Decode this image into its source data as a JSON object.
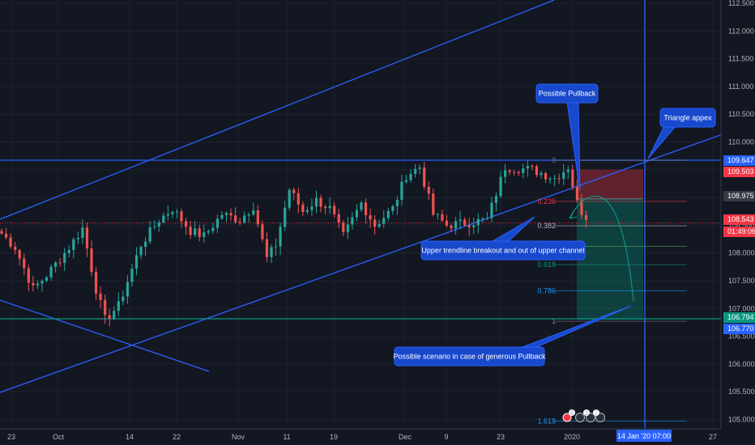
{
  "chart_data": {
    "type": "candlestick",
    "price_axis": {
      "range": [
        104.9,
        112.6
      ],
      "ticks": [
        "112.500",
        "112.000",
        "111.500",
        "111.000",
        "110.500",
        "110.000",
        "109.500",
        "109.000",
        "108.500",
        "108.000",
        "107.500",
        "107.000",
        "106.500",
        "106.000",
        "105.500",
        "105.000"
      ]
    },
    "time_axis": {
      "labels": [
        "23",
        "Oct",
        "14",
        "22",
        "Nov",
        "11",
        "19",
        "Dec",
        "9",
        "23",
        "2020",
        "27"
      ],
      "crosshair_label": "14 Jan '20   07:00"
    },
    "price_tags": [
      {
        "value": "109.647",
        "color": "#2962ff"
      },
      {
        "value": "109.503",
        "color": "#f23645"
      },
      {
        "value": "108.975",
        "color": "#363a45"
      },
      {
        "value": "108.543",
        "color": "#f23645"
      },
      {
        "value": "01:49:06",
        "color": "#f23645"
      },
      {
        "value": "106.794",
        "color": "#089981"
      },
      {
        "value": "106.770",
        "color": "#2962ff"
      }
    ],
    "fib_levels": [
      {
        "label": "0",
        "price": 109.67,
        "color": "#787b86"
      },
      {
        "label": "0.236",
        "price": 108.93,
        "color": "#f23645"
      },
      {
        "label": "0.382",
        "price": 108.49,
        "color": "#b2b5be"
      },
      {
        "label": "0.5",
        "price": 108.12,
        "color": "#4caf50"
      },
      {
        "label": "0.618",
        "price": 107.79,
        "color": "#089981"
      },
      {
        "label": "0.786",
        "price": 107.32,
        "color": "#2196f3"
      },
      {
        "label": "1",
        "price": 106.77,
        "color": "#787b86"
      },
      {
        "label": "1.618",
        "price": 104.97,
        "color": "#2196f3"
      }
    ],
    "annotations": [
      {
        "id": "pullback",
        "text": "Possible Pullback"
      },
      {
        "id": "triangle",
        "text": "Triangle appex"
      },
      {
        "id": "breakout",
        "text": "Upper trendline breakout and out of upper channel"
      },
      {
        "id": "scenario",
        "text": "Possible scenario in case of generous Pullback"
      }
    ],
    "events": [
      "4",
      "3",
      "7"
    ],
    "position": {
      "entry": 108.975,
      "stop": 109.503,
      "target": 106.794
    },
    "anchors": [
      {
        "day": 0,
        "price": 108.35
      },
      {
        "day": 3,
        "price": 108.1
      },
      {
        "day": 7,
        "price": 107.35
      },
      {
        "day": 10,
        "price": 107.6
      },
      {
        "day": 15,
        "price": 108.1
      },
      {
        "day": 18,
        "price": 108.45
      },
      {
        "day": 21,
        "price": 107.35
      },
      {
        "day": 23,
        "price": 106.8
      },
      {
        "day": 26,
        "price": 107.05
      },
      {
        "day": 31,
        "price": 108.15
      },
      {
        "day": 35,
        "price": 108.6
      },
      {
        "day": 38,
        "price": 108.8
      },
      {
        "day": 42,
        "price": 108.4
      },
      {
        "day": 45,
        "price": 108.3
      },
      {
        "day": 49,
        "price": 108.7
      },
      {
        "day": 53,
        "price": 108.6
      },
      {
        "day": 56,
        "price": 108.85
      },
      {
        "day": 59,
        "price": 107.9
      },
      {
        "day": 61,
        "price": 108.15
      },
      {
        "day": 64,
        "price": 109.15
      },
      {
        "day": 67,
        "price": 108.75
      },
      {
        "day": 70,
        "price": 108.95
      },
      {
        "day": 73,
        "price": 108.8
      },
      {
        "day": 76,
        "price": 108.3
      },
      {
        "day": 80,
        "price": 108.9
      },
      {
        "day": 83,
        "price": 108.5
      },
      {
        "day": 87,
        "price": 108.8
      },
      {
        "day": 90,
        "price": 109.4
      },
      {
        "day": 93,
        "price": 109.55
      },
      {
        "day": 96,
        "price": 108.7
      },
      {
        "day": 99,
        "price": 108.5
      },
      {
        "day": 104,
        "price": 108.55
      },
      {
        "day": 108,
        "price": 108.6
      },
      {
        "day": 112,
        "price": 109.55
      },
      {
        "day": 118,
        "price": 109.5
      },
      {
        "day": 123,
        "price": 109.35
      },
      {
        "day": 126,
        "price": 109.55
      },
      {
        "day": 128,
        "price": 108.9
      },
      {
        "day": 130,
        "price": 108.6
      }
    ]
  }
}
